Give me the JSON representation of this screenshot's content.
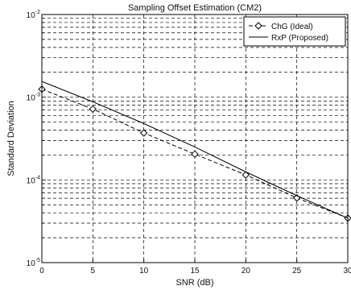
{
  "chart_data": {
    "type": "line",
    "title": "Sampling Offset Estimation (CM2)",
    "xlabel": "SNR (dB)",
    "ylabel": "Standard Deviation",
    "x_scale": "linear",
    "y_scale": "log",
    "xlim": [
      0,
      30
    ],
    "ylim": [
      1e-05,
      0.01
    ],
    "x_ticks": [
      0,
      5,
      10,
      15,
      20,
      25,
      30
    ],
    "y_ticks": [
      {
        "value": 0.01,
        "base": "10",
        "exp": "-2"
      },
      {
        "value": 0.001,
        "base": "10",
        "exp": "-3"
      },
      {
        "value": 0.0001,
        "base": "10",
        "exp": "-4"
      },
      {
        "value": 1e-05,
        "base": "10",
        "exp": "-5"
      }
    ],
    "grid": true,
    "grid_style": "dashed",
    "legend_position": "top-right",
    "series": [
      {
        "name": "ChG (Ideal)",
        "style": "dashed",
        "marker": "diamond",
        "color": "#000000",
        "x": [
          0,
          5,
          10,
          15,
          20,
          25,
          30
        ],
        "y": [
          0.00125,
          0.00072,
          0.00037,
          0.000205,
          0.000115,
          6.05e-05,
          3.45e-05
        ]
      },
      {
        "name": "RxP (Proposed)",
        "style": "solid",
        "marker": "none",
        "color": "#000000",
        "x": [
          0,
          5,
          10,
          15,
          20,
          25,
          30
        ],
        "y": [
          0.00155,
          0.00088,
          0.00048,
          0.00025,
          0.000125,
          6.45e-05,
          3.45e-05
        ]
      }
    ]
  }
}
